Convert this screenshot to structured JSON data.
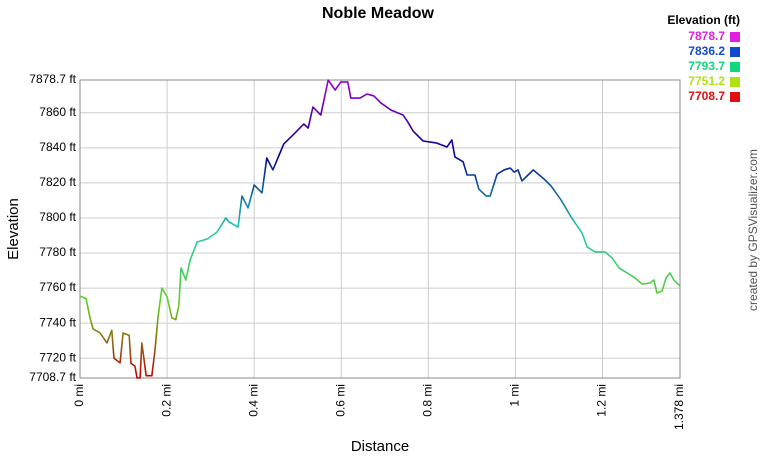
{
  "chart_data": {
    "type": "line",
    "title": "Noble Meadow",
    "x_label": "Distance",
    "y_label": "Elevation",
    "credit": "created by GPSVisualizer.com",
    "xlim": [
      0,
      1.378
    ],
    "ylim": [
      7708.7,
      7878.7
    ],
    "xticks": [
      {
        "value": 0,
        "label": "0 mi"
      },
      {
        "value": 0.2,
        "label": "0.2 mi"
      },
      {
        "value": 0.4,
        "label": "0.4 mi"
      },
      {
        "value": 0.6,
        "label": "0.6 mi"
      },
      {
        "value": 0.8,
        "label": "0.8 mi"
      },
      {
        "value": 1,
        "label": "1 mi"
      },
      {
        "value": 1.2,
        "label": "1.2 mi"
      },
      {
        "value": 1.378,
        "label": "1.378 mi"
      }
    ],
    "yticks": [
      {
        "value": 7708.7,
        "label": "7708.7 ft"
      },
      {
        "value": 7720,
        "label": "7720 ft"
      },
      {
        "value": 7740,
        "label": "7740 ft"
      },
      {
        "value": 7760,
        "label": "7760 ft"
      },
      {
        "value": 7780,
        "label": "7780 ft"
      },
      {
        "value": 7800,
        "label": "7800 ft"
      },
      {
        "value": 7820,
        "label": "7820 ft"
      },
      {
        "value": 7840,
        "label": "7840 ft"
      },
      {
        "value": 7860,
        "label": "7860 ft"
      },
      {
        "value": 7878.7,
        "label": "7878.7 ft"
      }
    ],
    "grid": true,
    "legend": {
      "title": "Elevation (ft)",
      "position": "top-right",
      "entries": [
        {
          "value": 7878.7,
          "color": "#e020e0"
        },
        {
          "value": 7836.2,
          "color": "#1048d0"
        },
        {
          "value": 7793.7,
          "color": "#10d880"
        },
        {
          "value": 7751.2,
          "color": "#b0e010"
        },
        {
          "value": 7708.7,
          "color": "#e01010"
        }
      ]
    },
    "line_colors": [
      {
        "value": 7878.7,
        "color": "#a000d0"
      },
      {
        "value": 7836.2,
        "color": "#000090"
      },
      {
        "value": 7793.7,
        "color": "#20c8b0"
      },
      {
        "value": 7751.2,
        "color": "#60d020"
      },
      {
        "value": 7708.7,
        "color": "#c00000"
      }
    ],
    "series": [
      {
        "x": [
          0,
          0.014,
          0.023,
          0.03,
          0.046,
          0.062,
          0.073,
          0.078,
          0.092,
          0.099,
          0.113,
          0.117,
          0.126,
          0.131,
          0.138,
          0.142,
          0.152,
          0.165,
          0.172,
          0.179,
          0.188,
          0.2,
          0.211,
          0.22,
          0.227,
          0.232,
          0.243,
          0.253,
          0.269,
          0.292,
          0.315,
          0.335,
          0.342,
          0.363,
          0.372,
          0.386,
          0.4,
          0.418,
          0.429,
          0.443,
          0.468,
          0.489,
          0.514,
          0.524,
          0.535,
          0.553,
          0.57,
          0.586,
          0.599,
          0.615,
          0.622,
          0.643,
          0.659,
          0.675,
          0.691,
          0.714,
          0.742,
          0.753,
          0.765,
          0.788,
          0.818,
          0.843,
          0.854,
          0.861,
          0.88,
          0.889,
          0.907,
          0.916,
          0.933,
          0.942,
          0.958,
          0.974,
          0.988,
          0.997,
          1.006,
          1.015,
          1.027,
          1.041,
          1.068,
          1.082,
          1.105,
          1.128,
          1.153,
          1.165,
          1.183,
          1.206,
          1.222,
          1.238,
          1.272,
          1.291,
          1.309,
          1.318,
          1.325,
          1.337,
          1.346,
          1.355,
          1.364,
          1.378
        ],
        "values": [
          7755.5,
          7754,
          7743,
          7736.7,
          7734.4,
          7728.7,
          7736,
          7720,
          7717.3,
          7734.4,
          7733,
          7717,
          7715.6,
          7708.7,
          7708.7,
          7728.7,
          7710,
          7710,
          7724.1,
          7743,
          7760,
          7755,
          7743,
          7742,
          7750,
          7771.5,
          7764.6,
          7776,
          7786.3,
          7788,
          7792,
          7800,
          7797.7,
          7794.8,
          7812.5,
          7805.7,
          7818.8,
          7814.3,
          7834.2,
          7827.4,
          7842.2,
          7847.3,
          7853.6,
          7851.3,
          7863.3,
          7858.7,
          7878.7,
          7873,
          7877.6,
          7877.6,
          7868.4,
          7868.4,
          7870.7,
          7869.6,
          7865.6,
          7861.6,
          7858.7,
          7854.7,
          7849.6,
          7843.9,
          7842.8,
          7840.5,
          7844.5,
          7834.8,
          7832,
          7824.5,
          7824.5,
          7816.5,
          7812.5,
          7812.5,
          7825,
          7827.4,
          7828.5,
          7826.2,
          7827.4,
          7821.1,
          7824,
          7827.4,
          7821.7,
          7818.2,
          7810.2,
          7800.5,
          7791.4,
          7783.4,
          7780.6,
          7780.6,
          7777.2,
          7771.5,
          7766.3,
          7762.3,
          7762.9,
          7764.6,
          7757.2,
          7758.4,
          7765.8,
          7768.6,
          7764.6,
          7761.2
        ]
      }
    ]
  }
}
